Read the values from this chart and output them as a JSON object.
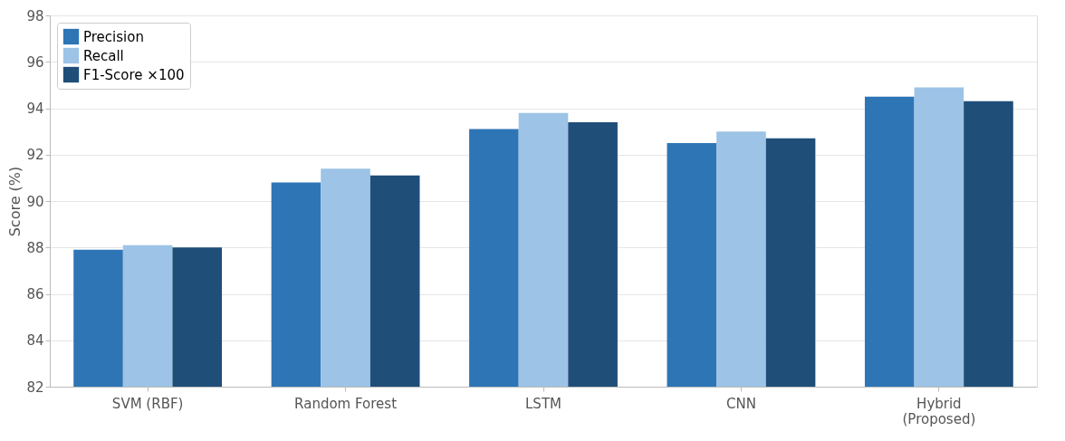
{
  "chart_data": {
    "type": "bar",
    "ylabel": "Score (%)",
    "categories": [
      "SVM (RBF)",
      "Random Forest",
      "LSTM",
      "CNN",
      "Hybrid\n(Proposed)"
    ],
    "series": [
      {
        "name": "Precision",
        "color": "#2e75b6",
        "values": [
          87.9,
          90.8,
          93.1,
          92.5,
          94.5
        ]
      },
      {
        "name": "Recall",
        "color": "#9dc3e6",
        "values": [
          88.1,
          91.4,
          93.8,
          93.0,
          94.9
        ]
      },
      {
        "name": "F1-Score ×100",
        "color": "#1f4e79",
        "values": [
          88.0,
          91.1,
          93.4,
          92.7,
          94.3
        ]
      }
    ],
    "ylim": [
      82,
      98
    ],
    "yticks": [
      82,
      84,
      86,
      88,
      90,
      92,
      94,
      96,
      98
    ],
    "grid": "y",
    "legend": "top left"
  }
}
